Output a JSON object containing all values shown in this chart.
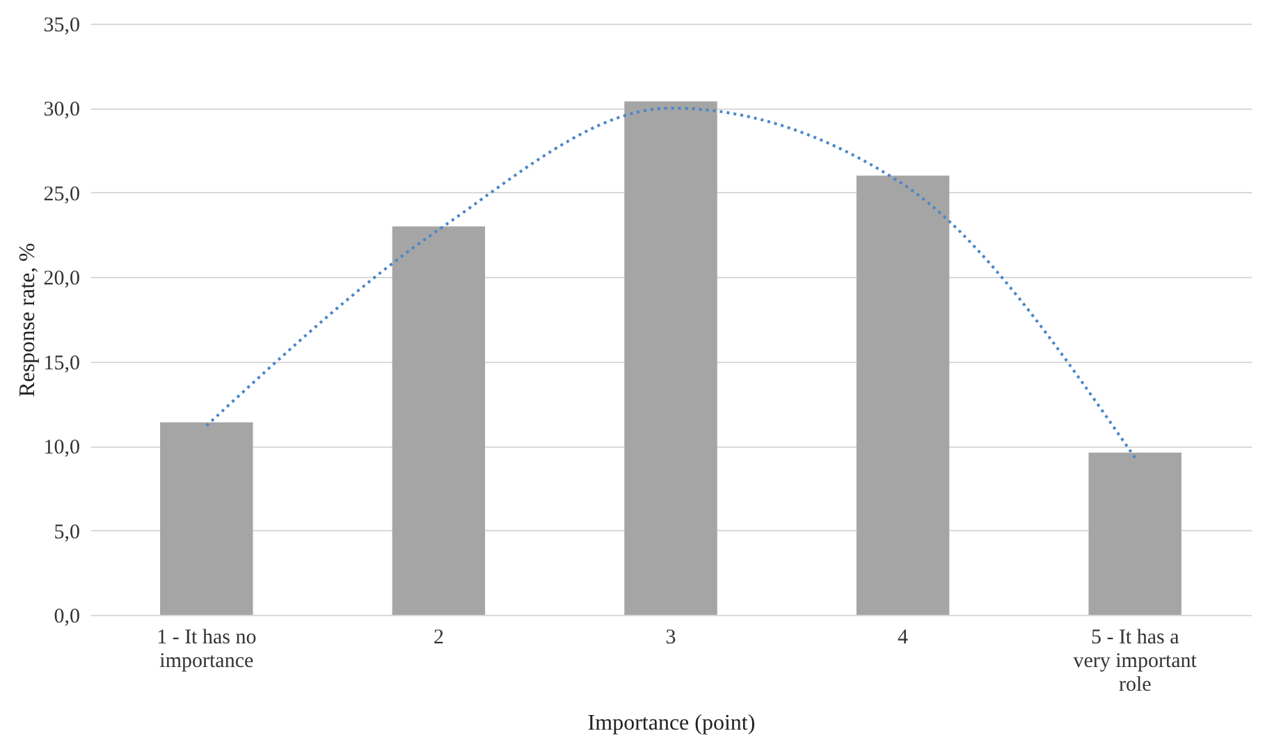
{
  "chart_data": {
    "type": "bar",
    "xlabel": "Importance (point)",
    "ylabel": "Response rate, %",
    "categories": [
      "1 - It has no importance",
      "2",
      "3",
      "4",
      "5 - It has a very important role"
    ],
    "series": [
      {
        "color": "#a5a5a5",
        "values": [
          11.4,
          23.0,
          30.4,
          26.0,
          9.6
        ]
      },
      {
        "type": "line",
        "color": "#4a86c8",
        "line_style": "dotted",
        "x": [
          "1 - It has no importance",
          "2",
          "3",
          "4",
          "5 - It has a very important role"
        ],
        "values": [
          11.2,
          22.8,
          30.0,
          25.5,
          9.3
        ]
      }
    ],
    "ylim": [
      0,
      35
    ],
    "yticks": [
      {
        "value": 0,
        "label": "0,0"
      },
      {
        "value": 5,
        "label": "5,0"
      },
      {
        "value": 10,
        "label": "10,0"
      },
      {
        "value": 15,
        "label": "15,0"
      },
      {
        "value": 20,
        "label": "20,0"
      },
      {
        "value": 25,
        "label": "25,0"
      },
      {
        "value": 30,
        "label": "30,0"
      },
      {
        "value": 35,
        "label": "35,0"
      }
    ],
    "grid": "y"
  }
}
